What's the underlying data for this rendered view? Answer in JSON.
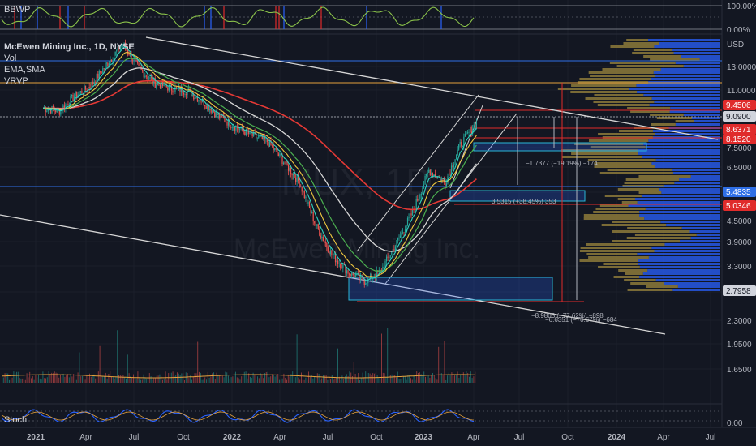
{
  "legend": {
    "symbol": "McEwen Mining Inc., 1D, NYSE",
    "items": [
      "Vol",
      "EMA,SMA",
      "VRVP"
    ]
  },
  "panes": {
    "bbwp_label": "BBWP",
    "bbwp_ticks": [
      "100.00%",
      "0.00%"
    ],
    "stoch_label": "Stoch",
    "stoch_tick": "0.00"
  },
  "watermark": {
    "ticker": "MUX, 1D",
    "name": "McEwen Mining Inc."
  },
  "price_axis": {
    "currency": "USD",
    "ticks": [
      "13.0000",
      "11.0000",
      "9.0900",
      "7.5000",
      "6.5000",
      "5.4835",
      "4.5000",
      "3.9000",
      "3.3000",
      "2.7958",
      "2.3000",
      "1.9500",
      "1.6500"
    ],
    "badges": [
      {
        "text": "9.4506",
        "color": "#e02b2b"
      },
      {
        "text": "9.0900",
        "color": "#d1d4dc"
      },
      {
        "text": "8.6371",
        "color": "#e02b2b"
      },
      {
        "text": "8.1520",
        "color": "#e02b2b"
      },
      {
        "text": "5.4835",
        "color": "#2f6fe6"
      },
      {
        "text": "5.0346",
        "color": "#e02b2b"
      },
      {
        "text": "2.7958",
        "color": "#d1d4dc"
      }
    ]
  },
  "time_axis": [
    "2021",
    "Apr",
    "Jul",
    "Oct",
    "2022",
    "Apr",
    "Jul",
    "Oct",
    "2023",
    "Apr",
    "Jul",
    "Oct",
    "2024",
    "Apr",
    "Jul"
  ],
  "annotations": [
    "−1.7377 (−19.19%) −174",
    "3.5315 (+38.45%) 353",
    "−8.9803 (−77.62%) −898",
    "−6.6351 (−70.67%) −684"
  ],
  "colors": {
    "background": "#131722",
    "grid": "#1e222d",
    "ema_fast": "#2fd3c0",
    "ema_mid": "#f0c840",
    "ema_slow": "#4caf50",
    "sma": "#e53935",
    "sma_white": "#d6d6d6",
    "vrvp_up": "#2962ff",
    "vrvp_down": "#8d7a3a"
  },
  "chart_data": {
    "type": "line",
    "title": "McEwen Mining Inc., 1D, NYSE",
    "x": [
      "2021-01",
      "2021-02",
      "2021-03",
      "2021-04",
      "2021-05",
      "2021-06",
      "2021-07",
      "2021-08",
      "2021-09",
      "2021-10",
      "2021-11",
      "2021-12",
      "2022-01",
      "2022-02",
      "2022-03",
      "2022-04",
      "2022-05",
      "2022-06",
      "2022-07",
      "2022-08",
      "2022-09",
      "2022-10",
      "2022-11",
      "2022-12",
      "2023-01",
      "2023-02",
      "2023-03",
      "2023-04"
    ],
    "series": [
      {
        "values": [
          9.8,
          9.6,
          10.6,
          11.4,
          13.2,
          15.2,
          12.8,
          11.6,
          11.2,
          11.0,
          10.2,
          9.2,
          8.6,
          8.1,
          7.8,
          6.8,
          5.9,
          4.4,
          3.6,
          3.2,
          3.0,
          3.2,
          3.9,
          4.8,
          6.4,
          5.9,
          7.6,
          8.9
        ]
      }
    ],
    "ylim": [
      1.5,
      16.0
    ],
    "scale": "log"
  }
}
